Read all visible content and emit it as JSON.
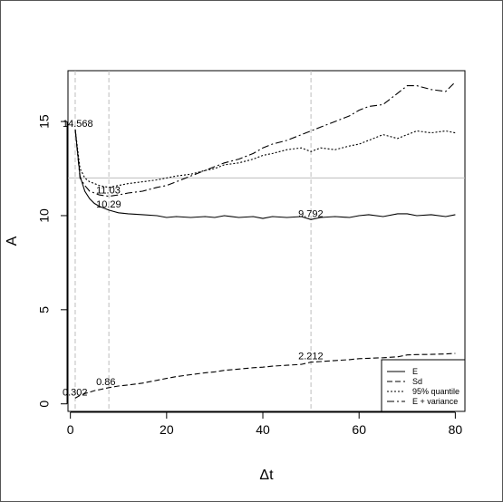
{
  "chart_data": {
    "type": "line",
    "title": "",
    "xlabel": "Δt",
    "ylabel": "A",
    "xlim": [
      -0.5,
      82
    ],
    "ylim": [
      -0.4,
      17.7
    ],
    "xticks": [
      "0",
      "20",
      "40",
      "60",
      "80"
    ],
    "yticks": [
      "0",
      "5",
      "10",
      "15"
    ],
    "legend_position": "bottom-right",
    "reference_lines": {
      "vertical_x": [
        1,
        8,
        50
      ],
      "horizontal_y": [
        12
      ]
    },
    "annotations": [
      {
        "text": "14.568",
        "x": 1,
        "y": 14.568
      },
      {
        "text": "11.03",
        "x": 8,
        "y": 11.03
      },
      {
        "text": "10.29",
        "x": 8,
        "y": 10.29
      },
      {
        "text": "9.792",
        "x": 50,
        "y": 9.792
      },
      {
        "text": "2.212",
        "x": 50,
        "y": 2.212
      },
      {
        "text": "0.86",
        "x": 8,
        "y": 0.86
      },
      {
        "text": "0.302",
        "x": 1,
        "y": 0.302
      }
    ],
    "x": [
      1,
      2,
      3,
      4,
      5,
      6,
      8,
      10,
      12,
      15,
      18,
      20,
      22,
      25,
      28,
      30,
      32,
      35,
      38,
      40,
      42,
      45,
      48,
      50,
      52,
      55,
      58,
      60,
      62,
      65,
      68,
      70,
      72,
      75,
      78,
      80
    ],
    "series": [
      {
        "name": "E",
        "dash": "",
        "values": [
          14.57,
          12.1,
          11.3,
          10.9,
          10.65,
          10.5,
          10.29,
          10.15,
          10.1,
          10.05,
          10.0,
          9.9,
          9.95,
          9.9,
          9.95,
          9.9,
          10.0,
          9.9,
          9.95,
          9.85,
          9.95,
          9.9,
          9.95,
          9.79,
          9.9,
          9.95,
          9.9,
          10.0,
          10.05,
          9.95,
          10.1,
          10.1,
          10.0,
          10.05,
          9.95,
          10.05
        ]
      },
      {
        "name": "Sd",
        "dash": "6 3",
        "values": [
          0.302,
          0.45,
          0.55,
          0.62,
          0.7,
          0.75,
          0.86,
          0.95,
          1.0,
          1.1,
          1.25,
          1.35,
          1.45,
          1.55,
          1.65,
          1.7,
          1.78,
          1.85,
          1.92,
          1.95,
          2.0,
          2.05,
          2.1,
          2.212,
          2.25,
          2.3,
          2.35,
          2.4,
          2.42,
          2.45,
          2.5,
          2.6,
          2.62,
          2.63,
          2.65,
          2.68
        ]
      },
      {
        "name": "95% quantile",
        "dash": "2 2",
        "values": [
          14.57,
          12.5,
          12.0,
          11.8,
          11.7,
          11.6,
          11.5,
          11.6,
          11.7,
          11.8,
          11.9,
          12.0,
          12.1,
          12.2,
          12.4,
          12.5,
          12.7,
          12.8,
          13.0,
          13.2,
          13.3,
          13.5,
          13.6,
          13.4,
          13.6,
          13.5,
          13.7,
          13.8,
          14.0,
          14.3,
          14.1,
          14.3,
          14.5,
          14.4,
          14.5,
          14.4
        ]
      },
      {
        "name": "E + variance",
        "dash": "8 3 2 3",
        "values": [
          14.57,
          12.0,
          11.6,
          11.3,
          11.2,
          11.1,
          11.03,
          11.1,
          11.2,
          11.3,
          11.5,
          11.6,
          11.8,
          12.1,
          12.4,
          12.6,
          12.8,
          13.0,
          13.3,
          13.6,
          13.8,
          14.0,
          14.3,
          14.5,
          14.7,
          15.0,
          15.3,
          15.6,
          15.8,
          15.9,
          16.5,
          16.9,
          16.9,
          16.7,
          16.6,
          17.1
        ]
      }
    ]
  }
}
